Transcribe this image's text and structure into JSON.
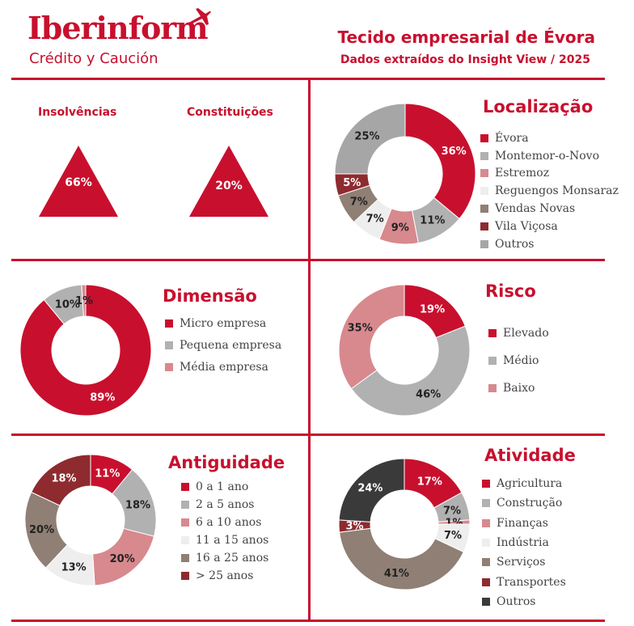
{
  "header": {
    "brand": "Iberinform",
    "tagline": "Crédito y Caución",
    "title": "Tecido empresarial de Évora",
    "subtitle": "Dados extraídos do Insight View / 2025"
  },
  "colors": {
    "accent": "#c8102e",
    "red": "#c8102e",
    "gray": "#b1b1b1",
    "pink": "#d7898e",
    "light": "#eeeeee",
    "brown": "#8f7f74",
    "darkred": "#8e2b2f",
    "charcoal": "#3a3a3a"
  },
  "indicators": [
    {
      "label": "Insolvências",
      "value": "66%"
    },
    {
      "label": "Constituições",
      "value": "20%"
    }
  ],
  "chart_data": [
    {
      "id": "localizacao",
      "type": "pie",
      "title": "Localização",
      "categories": [
        "Évora",
        "Montemor-o-Novo",
        "Estremoz",
        "Reguengos Monsaraz",
        "Vendas Novas",
        "Vila Viçosa",
        "Outros"
      ],
      "values": [
        36,
        11,
        9,
        7,
        7,
        5,
        25
      ],
      "labels": [
        "36%",
        "11%",
        "9%",
        "7%",
        "7%",
        "5%",
        "25%"
      ],
      "colors": [
        "#c8102e",
        "#b1b1b1",
        "#d7898e",
        "#eeeeee",
        "#8f7f74",
        "#8e2b2f",
        "#a6a6a6"
      ]
    },
    {
      "id": "dimensao",
      "type": "pie",
      "title": "Dimensão",
      "categories": [
        "Micro empresa",
        "Pequena empresa",
        "Média empresa"
      ],
      "values": [
        89,
        10,
        1
      ],
      "labels": [
        "89%",
        "10%",
        "1%"
      ],
      "colors": [
        "#c8102e",
        "#b1b1b1",
        "#d7898e"
      ]
    },
    {
      "id": "risco",
      "type": "pie",
      "title": "Risco",
      "categories": [
        "Elevado",
        "Médio",
        "Baixo"
      ],
      "values": [
        19,
        46,
        35
      ],
      "labels": [
        "19%",
        "46%",
        "35%"
      ],
      "colors": [
        "#c8102e",
        "#b1b1b1",
        "#d7898e"
      ]
    },
    {
      "id": "antiguidade",
      "type": "pie",
      "title": "Antiguidade",
      "categories": [
        "0 a 1 ano",
        "2 a 5 anos",
        "6 a 10 anos",
        "11 a 15 anos",
        "16 a 25 anos",
        "> 25 anos"
      ],
      "values": [
        11,
        18,
        20,
        13,
        20,
        18
      ],
      "labels": [
        "11%",
        "18%",
        "20%",
        "13%",
        "20%",
        "18%"
      ],
      "colors": [
        "#c8102e",
        "#b1b1b1",
        "#d7898e",
        "#eeeeee",
        "#8f7f74",
        "#8e2b2f"
      ]
    },
    {
      "id": "atividade",
      "type": "pie",
      "title": "Atividade",
      "categories": [
        "Agricultura",
        "Construção",
        "Finanças",
        "Indústria",
        "Serviços",
        "Transportes",
        "Outros"
      ],
      "values": [
        17,
        7,
        1,
        7,
        41,
        3,
        24
      ],
      "labels": [
        "17%",
        "7%",
        "1%",
        "7%",
        "41%",
        "3%",
        "24%"
      ],
      "colors": [
        "#c8102e",
        "#b1b1b1",
        "#d7898e",
        "#eeeeee",
        "#8f7f74",
        "#8e2b2f",
        "#3a3a3a"
      ]
    }
  ]
}
